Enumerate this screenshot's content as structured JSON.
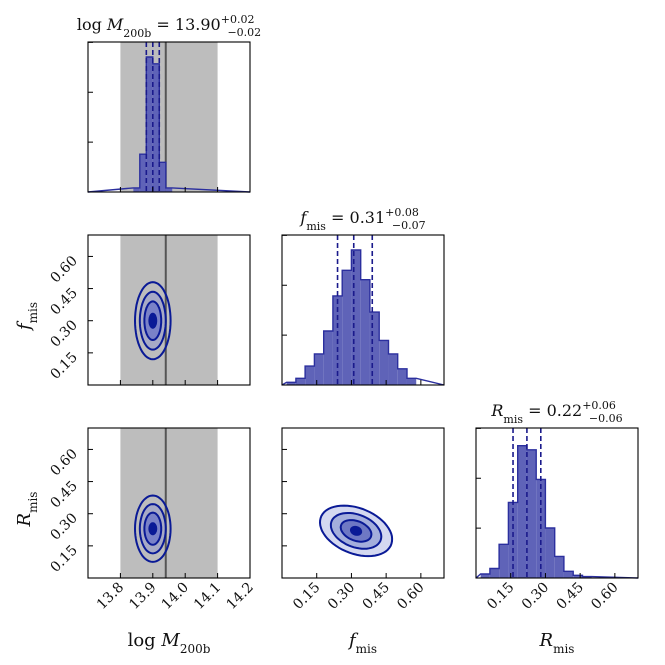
{
  "chart_data": {
    "type": "corner",
    "parameters": [
      {
        "name": "logM",
        "label_main": "log ",
        "label_sym": "M",
        "label_sub": "200b",
        "range": [
          13.7,
          14.2
        ],
        "ticks": [
          "13.8",
          "13.9",
          "14.0",
          "14.1",
          "14.2"
        ],
        "tick_values": [
          13.8,
          13.9,
          14.0,
          14.1,
          14.2
        ],
        "median": "13.90",
        "err_plus": "+0.02",
        "err_minus": "−0.02",
        "quantiles": [
          13.88,
          13.9,
          13.92
        ],
        "prior_band": [
          13.8,
          14.1
        ],
        "reference": 13.94,
        "hist_bins": [
          13.84,
          13.86,
          13.88,
          13.9,
          13.92,
          13.94,
          13.96
        ],
        "hist_counts": [
          0.03,
          0.28,
          1.0,
          0.95,
          0.22,
          0.03
        ]
      },
      {
        "name": "fmis",
        "label_sym": "f",
        "label_sub": "mis",
        "range": [
          0.0,
          0.7
        ],
        "ticks": [
          "0.15",
          "0.30",
          "0.45",
          "0.60"
        ],
        "tick_values": [
          0.15,
          0.3,
          0.45,
          0.6
        ],
        "median": "0.31",
        "err_plus": "+0.08",
        "err_minus": "−0.07",
        "quantiles": [
          0.24,
          0.31,
          0.39
        ],
        "hist_bins": [
          0.02,
          0.06,
          0.1,
          0.14,
          0.18,
          0.22,
          0.26,
          0.3,
          0.34,
          0.38,
          0.42,
          0.46,
          0.5,
          0.54,
          0.58
        ],
        "hist_counts": [
          0.02,
          0.05,
          0.14,
          0.23,
          0.4,
          0.66,
          0.85,
          1.0,
          0.78,
          0.54,
          0.33,
          0.23,
          0.12,
          0.05
        ]
      },
      {
        "name": "Rmis",
        "label_sym": "R",
        "label_sub": "mis",
        "range": [
          0.0,
          0.7
        ],
        "ticks": [
          "0.15",
          "0.30",
          "0.45",
          "0.60"
        ],
        "tick_values": [
          0.15,
          0.3,
          0.45,
          0.6
        ],
        "median": "0.22",
        "err_plus": "+0.06",
        "err_minus": "−0.06",
        "quantiles": [
          0.16,
          0.22,
          0.28
        ],
        "hist_bins": [
          0.02,
          0.06,
          0.1,
          0.14,
          0.18,
          0.22,
          0.26,
          0.3,
          0.34,
          0.38,
          0.42,
          0.46,
          0.5
        ],
        "hist_counts": [
          0.03,
          0.07,
          0.25,
          0.56,
          0.98,
          0.95,
          0.73,
          0.37,
          0.16,
          0.05,
          0.02,
          0.01
        ]
      }
    ],
    "contours_2d": [
      {
        "x": "logM",
        "y": "fmis",
        "center": [
          13.9,
          0.3
        ],
        "levels": [
          [
            0.012,
            0.035,
            0.0
          ],
          [
            0.026,
            0.09,
            0.0
          ],
          [
            0.04,
            0.135,
            0.0
          ],
          [
            0.055,
            0.18,
            0.0
          ]
        ]
      },
      {
        "x": "logM",
        "y": "Rmis",
        "center": [
          13.9,
          0.23
        ],
        "levels": [
          [
            0.012,
            0.028,
            0.0
          ],
          [
            0.026,
            0.075,
            0.0
          ],
          [
            0.04,
            0.115,
            0.0
          ],
          [
            0.055,
            0.155,
            0.0
          ]
        ]
      },
      {
        "x": "fmis",
        "y": "Rmis",
        "center": [
          0.32,
          0.22
        ],
        "levels": [
          [
            0.025,
            0.02,
            -25
          ],
          [
            0.07,
            0.045,
            -25
          ],
          [
            0.115,
            0.075,
            -25
          ],
          [
            0.165,
            0.105,
            -25
          ]
        ]
      }
    ],
    "colors": {
      "hist_fill": "#5f63b8",
      "hist_edge": "#2b2f9e",
      "quantile": "#1a1a8c",
      "contour_line": "#0a1a96",
      "band": "#bdbdbd",
      "reference": "#555555",
      "fill_levels": [
        "#0a1a96",
        "#6e78c4",
        "#a4aedc",
        "#d4d8f0"
      ]
    }
  }
}
